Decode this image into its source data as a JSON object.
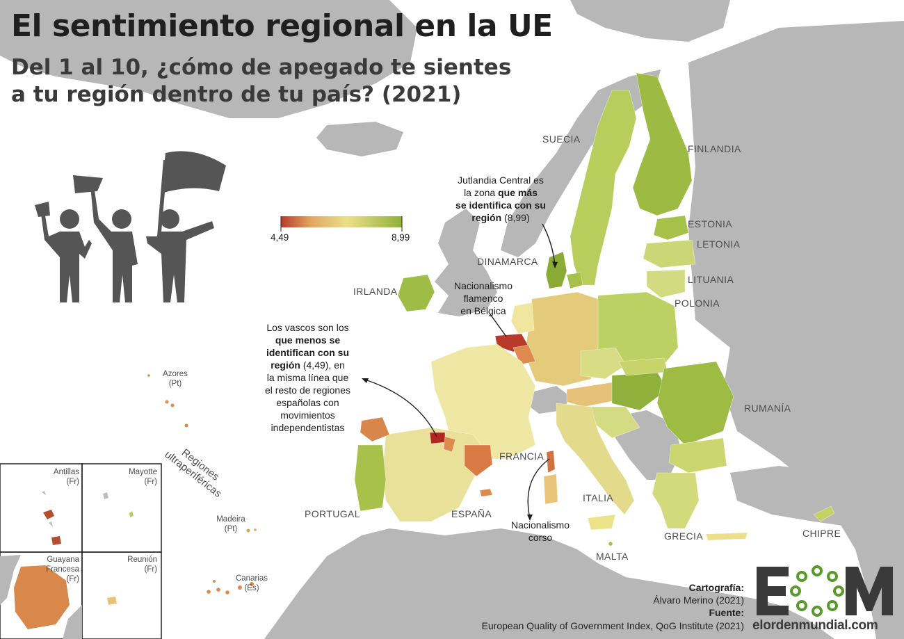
{
  "title": "El sentimiento regional en la UE",
  "subtitle_line1": "Del 1 al 10, ¿cómo de apegado te sientes",
  "subtitle_line2": "a tu región dentro de tu país? (2021)",
  "legend": {
    "min": "4,49",
    "max": "8,99",
    "min_color": "#b83a2a",
    "mid_color": "#ecdf8a",
    "max_color": "#8fb13b"
  },
  "countries": {
    "suecia": "SUECIA",
    "finlandia": "FINLANDIA",
    "estonia": "ESTONIA",
    "letonia": "LETONIA",
    "lituania": "LITUANIA",
    "polonia": "POLONIA",
    "dinamarca": "DINAMARCA",
    "irlanda": "IRLANDA",
    "rumania": "RUMANÍA",
    "francia": "FRANCIA",
    "italia": "ITALIA",
    "portugal": "PORTUGAL",
    "espana": "ESPAÑA",
    "grecia": "GRECIA",
    "chipre": "CHIPRE",
    "malta": "MALTA"
  },
  "notes": {
    "jutlandia_1": "Jutlandia Central es",
    "jutlandia_2": "la zona",
    "jutlandia_3": "que más",
    "jutlandia_4": "se identifica con su",
    "jutlandia_5": "región",
    "jutlandia_6": "(8,99)",
    "flamenco_1": "Nacionalismo",
    "flamenco_2": "flamenco",
    "flamenco_3": "en Bélgica",
    "vascos_1": "Los vascos son los",
    "vascos_2": "que menos se",
    "vascos_3": "identifican con su",
    "vascos_4": "región",
    "vascos_5": "(4,49), en",
    "vascos_6": "la misma línea que",
    "vascos_7": "el resto de regiones",
    "vascos_8": "españolas con",
    "vascos_9": "movimientos",
    "vascos_10": "independentistas",
    "corso_1": "Nacionalismo",
    "corso_2": "corso"
  },
  "outermost": {
    "label_1": "Regiones",
    "label_2": "ultraperiféricas",
    "azores": "Azores",
    "azores_c": "(Pt)",
    "madeira": "Madeira",
    "madeira_c": "(Pt)",
    "canarias": "Canarias",
    "canarias_c": "(Es)",
    "antillas": "Antillas",
    "antillas_c": "(Fr)",
    "mayotte": "Mayotte",
    "mayotte_c": "(Fr)",
    "guayana_1": "Guayana",
    "guayana_2": "Francesa",
    "guayana_c": "(Fr)",
    "reunion": "Reunión",
    "reunion_c": "(Fr)"
  },
  "credits": {
    "cartografia_label": "Cartografía:",
    "cartografia": "Álvaro Merino (2021)",
    "fuente_label": "Fuente:",
    "fuente": "European Quality of Government Index, QoG Institute (2021)"
  },
  "logo": {
    "text": "EOM",
    "url": "elordenmundial.com",
    "color": "#3a3a3a",
    "accent": "#5a9a2a"
  },
  "colors": {
    "sea": "#ffffff",
    "land_nonEU": "#b7b7b7",
    "pale": "#f3eeb0",
    "yellow": "#e7df8c",
    "light_green": "#cad66a",
    "green": "#a7c04a",
    "dark_green": "#8aac36",
    "orange_light": "#e9b872",
    "orange": "#d9884b",
    "red": "#b83a2a",
    "pictogram": "#555555"
  }
}
